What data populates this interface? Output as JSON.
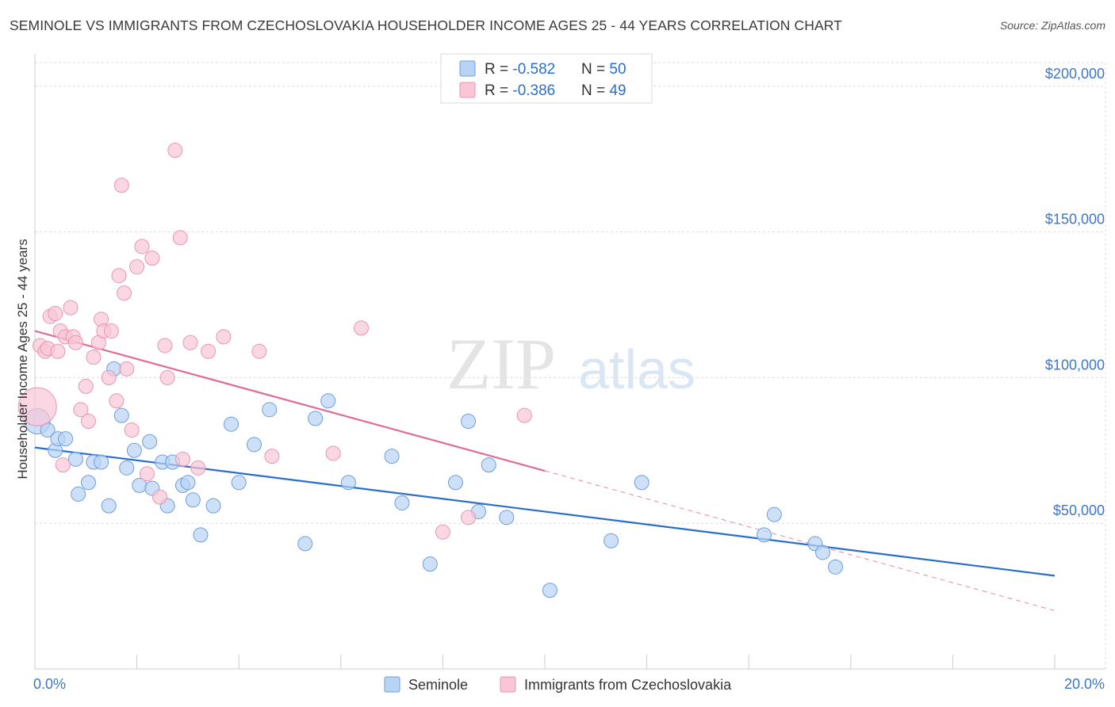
{
  "title": "SEMINOLE VS IMMIGRANTS FROM CZECHOSLOVAKIA HOUSEHOLDER INCOME AGES 25 - 44 YEARS CORRELATION CHART",
  "source": "Source: ZipAtlas.com",
  "watermark": {
    "zip": "ZIP",
    "atlas": "atlas"
  },
  "chart_data": {
    "type": "scatter",
    "ylabel": "Householder Income Ages 25 - 44 years",
    "xlabel": "",
    "xlim": [
      0,
      20
    ],
    "ylim": [
      0,
      210000
    ],
    "x_tick_labels": {
      "min": "0.0%",
      "max": "20.0%"
    },
    "y_ticks": [
      {
        "value": 50000,
        "label": "$50,000"
      },
      {
        "value": 100000,
        "label": "$100,000"
      },
      {
        "value": 150000,
        "label": "$150,000"
      },
      {
        "value": 200000,
        "label": "$200,000"
      }
    ],
    "legend_top": [
      {
        "r_label": "R = ",
        "r_value": "-0.582",
        "n_label": "N = ",
        "n_value": "50"
      },
      {
        "r_label": "R = ",
        "r_value": "-0.386",
        "n_label": "N = ",
        "n_value": "49"
      }
    ],
    "series": [
      {
        "name": "Seminole",
        "color": "#6c9fdc",
        "fill": "#b8d3f3",
        "line_color": "#2a6dd0",
        "trend": {
          "x0": 0.0,
          "y0": 76000,
          "x1": 20.0,
          "y1": 32000
        },
        "points": [
          [
            0.05,
            85000
          ],
          [
            0.25,
            82000
          ],
          [
            0.4,
            75000
          ],
          [
            0.45,
            79000
          ],
          [
            0.6,
            79000
          ],
          [
            0.8,
            72000
          ],
          [
            0.85,
            60000
          ],
          [
            1.05,
            64000
          ],
          [
            1.15,
            71000
          ],
          [
            1.3,
            71000
          ],
          [
            1.45,
            56000
          ],
          [
            1.55,
            103000
          ],
          [
            1.7,
            87000
          ],
          [
            1.8,
            69000
          ],
          [
            1.95,
            75000
          ],
          [
            2.05,
            63000
          ],
          [
            2.25,
            78000
          ],
          [
            2.3,
            62000
          ],
          [
            2.5,
            71000
          ],
          [
            2.6,
            56000
          ],
          [
            2.7,
            71000
          ],
          [
            2.9,
            63000
          ],
          [
            3.0,
            64000
          ],
          [
            3.1,
            58000
          ],
          [
            3.25,
            46000
          ],
          [
            3.5,
            56000
          ],
          [
            3.85,
            84000
          ],
          [
            4.0,
            64000
          ],
          [
            4.3,
            77000
          ],
          [
            4.6,
            89000
          ],
          [
            5.3,
            43000
          ],
          [
            5.5,
            86000
          ],
          [
            5.75,
            92000
          ],
          [
            6.15,
            64000
          ],
          [
            7.0,
            73000
          ],
          [
            7.2,
            57000
          ],
          [
            7.75,
            36000
          ],
          [
            8.25,
            64000
          ],
          [
            8.5,
            85000
          ],
          [
            8.7,
            54000
          ],
          [
            8.9,
            70000
          ],
          [
            9.25,
            52000
          ],
          [
            10.1,
            27000
          ],
          [
            11.3,
            44000
          ],
          [
            11.9,
            64000
          ],
          [
            14.3,
            46000
          ],
          [
            14.5,
            53000
          ],
          [
            15.3,
            43000
          ],
          [
            15.45,
            40000
          ],
          [
            15.7,
            35000
          ]
        ]
      },
      {
        "name": "Immigrants from Czechoslovakia",
        "color": "#e896b0",
        "fill": "#f8c6d6",
        "line_color": "#e06b94",
        "trend": {
          "x0": 0.0,
          "y0": 116000,
          "x1": 10.0,
          "y1": 68000
        },
        "trend_dashed": {
          "x0": 10.0,
          "y0": 68000,
          "x1": 20.0,
          "y1": 20000
        },
        "points": [
          [
            0.05,
            90000
          ],
          [
            0.1,
            111000
          ],
          [
            0.2,
            109000
          ],
          [
            0.25,
            110000
          ],
          [
            0.3,
            121000
          ],
          [
            0.4,
            122000
          ],
          [
            0.45,
            109000
          ],
          [
            0.5,
            116000
          ],
          [
            0.55,
            70000
          ],
          [
            0.6,
            114000
          ],
          [
            0.7,
            124000
          ],
          [
            0.75,
            114000
          ],
          [
            0.8,
            112000
          ],
          [
            0.9,
            89000
          ],
          [
            1.0,
            97000
          ],
          [
            1.05,
            85000
          ],
          [
            1.15,
            107000
          ],
          [
            1.25,
            112000
          ],
          [
            1.3,
            120000
          ],
          [
            1.35,
            116000
          ],
          [
            1.45,
            100000
          ],
          [
            1.5,
            116000
          ],
          [
            1.6,
            92000
          ],
          [
            1.65,
            135000
          ],
          [
            1.7,
            166000
          ],
          [
            1.75,
            129000
          ],
          [
            1.8,
            103000
          ],
          [
            1.9,
            82000
          ],
          [
            2.0,
            138000
          ],
          [
            2.1,
            145000
          ],
          [
            2.2,
            67000
          ],
          [
            2.3,
            141000
          ],
          [
            2.45,
            59000
          ],
          [
            2.55,
            111000
          ],
          [
            2.6,
            100000
          ],
          [
            2.75,
            178000
          ],
          [
            2.85,
            148000
          ],
          [
            2.9,
            72000
          ],
          [
            3.05,
            112000
          ],
          [
            3.2,
            69000
          ],
          [
            3.4,
            109000
          ],
          [
            3.7,
            114000
          ],
          [
            4.4,
            109000
          ],
          [
            4.65,
            73000
          ],
          [
            5.85,
            74000
          ],
          [
            6.4,
            117000
          ],
          [
            8.0,
            47000
          ],
          [
            8.5,
            52000
          ],
          [
            9.6,
            87000
          ]
        ]
      }
    ],
    "legend_bottom": [
      "Seminole",
      "Immigrants from Czechoslovakia"
    ]
  }
}
